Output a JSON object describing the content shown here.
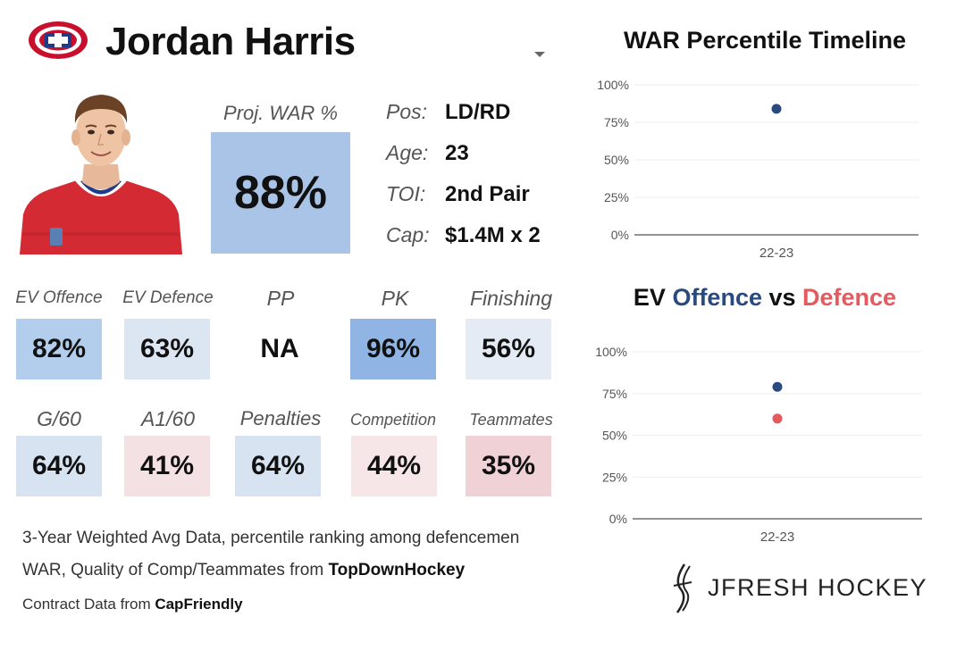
{
  "header": {
    "player_name": "Jordan Harris",
    "logo_icon": "canadiens-logo-icon"
  },
  "projection": {
    "label": "Proj. WAR %",
    "value": "88%"
  },
  "info": [
    {
      "key": "Pos:",
      "value": "LD/RD"
    },
    {
      "key": "Age:",
      "value": "23"
    },
    {
      "key": "TOI:",
      "value": "2nd Pair"
    },
    {
      "key": "Cap:",
      "value": "$1.4M x 2"
    }
  ],
  "stats": [
    {
      "label": "EV Offence",
      "value": "82%",
      "color": "#b3cdec"
    },
    {
      "label": "EV Defence",
      "value": "63%",
      "color": "#dce6f2"
    },
    {
      "label": "PP",
      "value": "NA",
      "color": "#ffffff"
    },
    {
      "label": "PK",
      "value": "96%",
      "color": "#90b4e4"
    },
    {
      "label": "Finishing",
      "value": "56%",
      "color": "#e4ebf4"
    },
    {
      "label": "G/60",
      "value": "64%",
      "color": "#d7e3f1"
    },
    {
      "label": "A1/60",
      "value": "41%",
      "color": "#f4e1e3"
    },
    {
      "label": "Penalties",
      "value": "64%",
      "color": "#d7e3f1"
    },
    {
      "label": "Competition",
      "value": "44%",
      "color": "#f6e6e8"
    },
    {
      "label": "Teammates",
      "value": "35%",
      "color": "#f0d2d6"
    }
  ],
  "footer": {
    "line1": "3-Year Weighted Avg Data, percentile ranking among defencemen",
    "line2_prefix": "WAR, Quality of Comp/Teammates from ",
    "line2_source": "TopDownHockey",
    "line3_prefix": "Contract Data from ",
    "line3_source": "CapFriendly"
  },
  "brand": {
    "name": "JFRESH HOCKEY",
    "icon": "jfresh-logo-icon"
  },
  "colors": {
    "offence": "#2a4a7f",
    "defence": "#e35a5f",
    "proj_box": "#a9c4e6"
  },
  "chart_data": [
    {
      "type": "scatter",
      "title": "WAR Percentile Timeline",
      "categories": [
        "22-23"
      ],
      "series": [
        {
          "values": [
            84
          ],
          "color": "#2a4a7f"
        }
      ],
      "ylim": [
        0,
        100
      ],
      "yticks": [
        "0%",
        "25%",
        "50%",
        "75%",
        "100%"
      ],
      "grid": true
    },
    {
      "type": "scatter",
      "title_parts": [
        "EV ",
        "Offence",
        " vs ",
        "Defence"
      ],
      "categories": [
        "22-23"
      ],
      "series": [
        {
          "name": "Offence",
          "values": [
            79
          ],
          "color": "#2a4a7f"
        },
        {
          "name": "Defence",
          "values": [
            60
          ],
          "color": "#e35a5f"
        }
      ],
      "ylim": [
        0,
        100
      ],
      "yticks": [
        "0%",
        "25%",
        "50%",
        "75%",
        "100%"
      ],
      "grid": true
    }
  ]
}
